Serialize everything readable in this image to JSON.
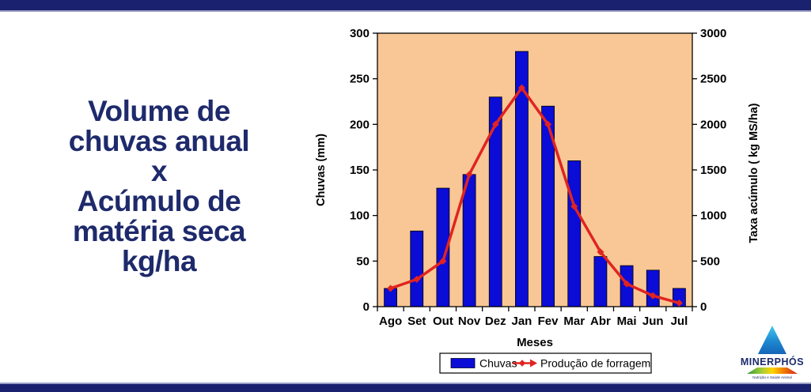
{
  "slide": {
    "title_lines": [
      "Volume de",
      "chuvas anual",
      "x",
      "Acúmulo de",
      "matéria seca",
      "kg/ha"
    ]
  },
  "chart_data": {
    "type": "bar",
    "title": "",
    "categories": [
      "Ago",
      "Set",
      "Out",
      "Nov",
      "Dez",
      "Jan",
      "Fev",
      "Mar",
      "Abr",
      "Mai",
      "Jun",
      "Jul"
    ],
    "series": [
      {
        "name": "Chuvas",
        "type": "bar",
        "axis": "left",
        "color": "#0b0cd6",
        "values": [
          20,
          83,
          130,
          145,
          230,
          280,
          220,
          160,
          55,
          45,
          40,
          20
        ]
      },
      {
        "name": "Produção de forragem",
        "type": "line",
        "axis": "right",
        "color": "#e02420",
        "values": [
          200,
          300,
          500,
          1450,
          2000,
          2400,
          2000,
          1100,
          600,
          250,
          120,
          40
        ]
      }
    ],
    "xlabel": "Meses",
    "left_axis": {
      "label": "Chuvas (mm)",
      "min": 0,
      "max": 300,
      "step": 50
    },
    "right_axis": {
      "label": "Taxa acúmulo ( kg MS/ha)",
      "min": 0,
      "max": 3000,
      "step": 500
    },
    "plot_background": "#f9c795",
    "grid": false,
    "legend_position": "bottom"
  },
  "logo": {
    "name": "MINERPHÓS",
    "tagline": "Nutrição e Saúde Animal"
  }
}
